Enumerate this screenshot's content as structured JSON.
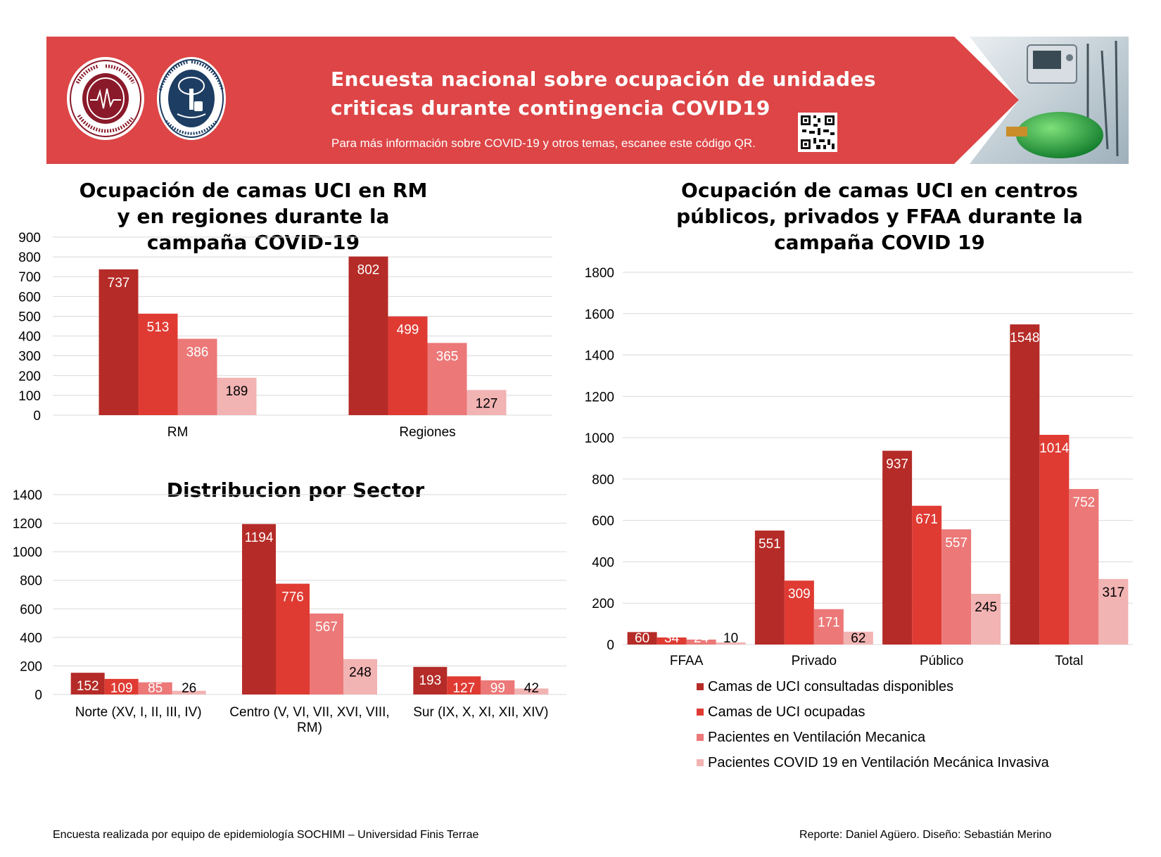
{
  "banner": {
    "title": "Encuesta nacional sobre ocupación de unidades criticas durante contingencia COVID19",
    "subtitle": "Para más información sobre COVID-19 y otros temas, escanee este código QR.",
    "color": "#dd4546",
    "logo_left_text": "SOCIEDAD CHILENA DE MEDICINA INTENSIVA",
    "logo_right_text": "UNIVERSIDAD FINIS TERRAE · VINCE IN BONO MALUM",
    "qr_icon": "qr-code-icon"
  },
  "colors": [
    "#b52b27",
    "#df3b33",
    "#ec7878",
    "#f2b3b3"
  ],
  "chart_data": [
    {
      "type": "bar",
      "title": "Ocupación de camas UCI en RM y en regiones durante la campaña COVID-19",
      "categories": [
        "RM",
        "Regiones"
      ],
      "series": [
        {
          "name": "Camas de UCI consultadas disponibles",
          "values": [
            737,
            802
          ]
        },
        {
          "name": "Camas de UCI ocupadas",
          "values": [
            513,
            499
          ]
        },
        {
          "name": "Pacientes en Ventilación Mecanica",
          "values": [
            386,
            365
          ]
        },
        {
          "name": "Pacientes COVID 19 en Ventilación Mecánica Invasiva",
          "values": [
            189,
            127
          ]
        }
      ],
      "ylim": [
        0,
        900
      ],
      "yticks": [
        "0",
        "100",
        "200",
        "300",
        "400",
        "500",
        "600",
        "700",
        "800",
        "900"
      ],
      "grid": true
    },
    {
      "type": "bar",
      "title": "Distribucion por Sector",
      "categories": [
        [
          "Norte (XV, I, II, III, IV)"
        ],
        [
          "Centro (V, VI, VII, XVI, VIII,",
          "RM)"
        ],
        [
          "Sur (IX, X, XI, XII, XIV)"
        ]
      ],
      "series": [
        {
          "name": "Camas de UCI consultadas disponibles",
          "values": [
            152,
            1194,
            193
          ]
        },
        {
          "name": "Camas de UCI ocupadas",
          "values": [
            109,
            776,
            127
          ]
        },
        {
          "name": "Pacientes en Ventilación Mecanica",
          "values": [
            85,
            567,
            99
          ]
        },
        {
          "name": "Pacientes COVID 19 en Ventilación Mecánica Invasiva",
          "values": [
            26,
            248,
            42
          ]
        }
      ],
      "ylim": [
        0,
        1400
      ],
      "yticks": [
        "0",
        "200",
        "400",
        "600",
        "800",
        "1000",
        "1200",
        "1400"
      ],
      "grid": true
    },
    {
      "type": "bar",
      "title": "Ocupación de camas UCI en centros públicos, privados y FFAA durante la campaña COVID 19",
      "categories": [
        "FFAA",
        "Privado",
        "Público",
        "Total"
      ],
      "series": [
        {
          "name": "Camas de UCI consultadas disponibles",
          "values": [
            60,
            551,
            937,
            1548
          ]
        },
        {
          "name": "Camas de UCI ocupadas",
          "values": [
            34,
            309,
            671,
            1014
          ]
        },
        {
          "name": "Pacientes en Ventilación Mecanica",
          "values": [
            24,
            171,
            557,
            752
          ]
        },
        {
          "name": "Pacientes COVID 19 en Ventilación Mecánica Invasiva",
          "values": [
            10,
            62,
            245,
            317
          ]
        }
      ],
      "ylim": [
        0,
        1800
      ],
      "yticks": [
        "0",
        "200",
        "400",
        "600",
        "800",
        "1000",
        "1200",
        "1400",
        "1600",
        "1800"
      ],
      "grid": true,
      "legend": "bottom"
    }
  ],
  "legend": [
    "Camas de UCI consultadas disponibles",
    "Camas de UCI ocupadas",
    "Pacientes en Ventilación Mecanica",
    "Pacientes COVID 19 en Ventilación Mecánica Invasiva"
  ],
  "footer": {
    "left": "Encuesta realizada por equipo de epidemiología SOCHIMI – Universidad Finis Terrae",
    "right": "Reporte: Daniel Agüero. Diseño: Sebastián Merino"
  }
}
